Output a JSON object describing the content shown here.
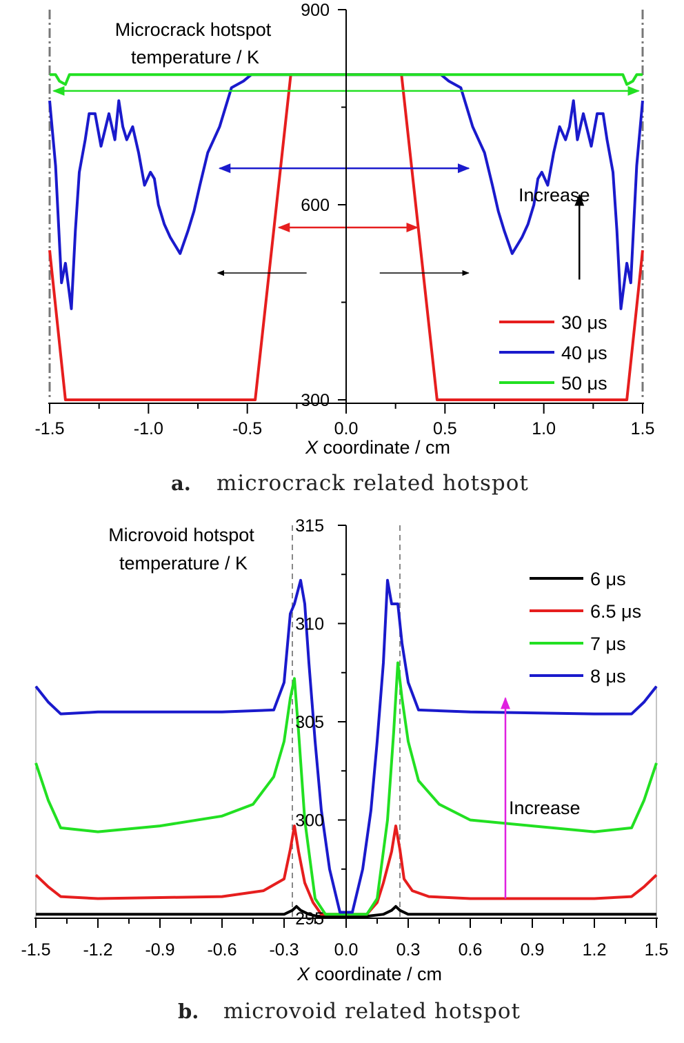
{
  "chart_data": [
    {
      "type": "line",
      "panel": "a",
      "caption_letter": "a.",
      "caption": "microcrack related hotspot",
      "ylabel_lines": [
        "Microcrack hotspot",
        "temperature / K"
      ],
      "xlabel_var": "X",
      "xlabel_rest": " coordinate / cm",
      "xlim": [
        -1.5,
        1.5
      ],
      "ylim": [
        300,
        900
      ],
      "xticks": [
        -1.5,
        -1.0,
        -0.5,
        0.0,
        0.5,
        1.0,
        1.5
      ],
      "xtick_labels": [
        "-1.5",
        "-1.0",
        "-0.5",
        "0.0",
        "0.5",
        "1.0",
        "1.5"
      ],
      "yticks": [
        300,
        600,
        900
      ],
      "ytick_labels": [
        "300",
        "600",
        "900"
      ],
      "annotation": "Increase",
      "legend_position": "bottom-right",
      "series": [
        {
          "name": "30 μs",
          "color": "#e61e1e",
          "x": [
            -1.5,
            -1.42,
            -0.46,
            -0.28,
            0.28,
            0.46,
            1.42,
            1.5
          ],
          "y": [
            530,
            300,
            300,
            800,
            800,
            300,
            300,
            530
          ]
        },
        {
          "name": "40 μs",
          "color": "#1a1acc",
          "x": [
            -1.5,
            -1.47,
            -1.44,
            -1.42,
            -1.39,
            -1.37,
            -1.35,
            -1.32,
            -1.3,
            -1.27,
            -1.24,
            -1.2,
            -1.17,
            -1.15,
            -1.13,
            -1.11,
            -1.08,
            -1.05,
            -1.02,
            -0.99,
            -0.97,
            -0.95,
            -0.92,
            -0.89,
            -0.87,
            -0.84,
            -0.8,
            -0.77,
            -0.74,
            -0.7,
            -0.67,
            -0.64,
            -0.61,
            -0.58,
            -0.55,
            -0.52,
            -0.48,
            -0.45,
            -0.42,
            -0.3,
            0.3,
            0.42,
            0.45,
            0.48,
            0.52,
            0.55,
            0.58,
            0.61,
            0.64,
            0.67,
            0.7,
            0.74,
            0.77,
            0.8,
            0.84,
            0.87,
            0.89,
            0.92,
            0.95,
            0.97,
            0.99,
            1.02,
            1.05,
            1.08,
            1.11,
            1.13,
            1.15,
            1.17,
            1.2,
            1.24,
            1.27,
            1.3,
            1.32,
            1.35,
            1.37,
            1.39,
            1.42,
            1.44,
            1.47,
            1.5
          ],
          "y": [
            760,
            660,
            480,
            510,
            440,
            560,
            650,
            700,
            740,
            740,
            690,
            740,
            700,
            760,
            720,
            700,
            720,
            680,
            630,
            650,
            640,
            600,
            570,
            550,
            540,
            525,
            560,
            590,
            630,
            680,
            700,
            720,
            750,
            780,
            785,
            790,
            800,
            800,
            800,
            800,
            800,
            800,
            800,
            800,
            790,
            785,
            780,
            750,
            720,
            700,
            680,
            630,
            590,
            560,
            525,
            540,
            550,
            570,
            600,
            640,
            650,
            630,
            680,
            720,
            700,
            720,
            760,
            700,
            740,
            690,
            740,
            740,
            700,
            650,
            560,
            440,
            510,
            480,
            660,
            760
          ]
        },
        {
          "name": "50 μs",
          "color": "#22e022",
          "x": [
            -1.5,
            -1.47,
            -1.45,
            -1.42,
            -1.4,
            -1.36,
            1.36,
            1.4,
            1.42,
            1.45,
            1.47,
            1.5
          ],
          "y": [
            800,
            800,
            790,
            785,
            800,
            800,
            800,
            800,
            785,
            790,
            800,
            800
          ]
        }
      ],
      "arrows": [
        {
          "name": "green-span-arrow",
          "color": "#22e022",
          "x": [
            -1.48,
            1.48
          ],
          "y": 775
        },
        {
          "name": "blue-span-arrow",
          "color": "#1a1acc",
          "x": [
            -0.64,
            0.62
          ],
          "y": 656
        },
        {
          "name": "red-span-arrow",
          "color": "#e61e1e",
          "x": [
            -0.34,
            0.36
          ],
          "y": 565
        },
        {
          "name": "left-black-arrow",
          "color": "#000000",
          "x": [
            -0.2,
            -0.65
          ],
          "y": 495
        },
        {
          "name": "right-black-arrow",
          "color": "#000000",
          "x": [
            0.17,
            0.62
          ],
          "y": 495
        }
      ],
      "increase_arrow": {
        "x": 1.18,
        "y": [
          485,
          615
        ],
        "label_x": 1.06,
        "label_y": 630
      }
    },
    {
      "type": "line",
      "panel": "b",
      "caption_letter": "b.",
      "caption": "microvoid related hotspot",
      "ylabel_lines": [
        "Microvoid hotspot",
        "temperature / K"
      ],
      "xlabel_var": "X",
      "xlabel_rest": " coordinate / cm",
      "xlim": [
        -1.5,
        1.5
      ],
      "ylim": [
        295,
        315
      ],
      "xticks": [
        -1.5,
        -1.2,
        -0.9,
        -0.6,
        -0.3,
        0.0,
        0.3,
        0.6,
        0.9,
        1.2,
        1.5
      ],
      "xtick_labels": [
        "-1.5",
        "-1.2",
        "-0.9",
        "-0.6",
        "-0.3",
        "0.0",
        "0.3",
        "0.6",
        "0.9",
        "1.2",
        "1.5"
      ],
      "yticks": [
        295,
        300,
        305,
        310,
        315
      ],
      "ytick_labels": [
        "295",
        "300",
        "305",
        "310",
        "315"
      ],
      "annotation": "Increase",
      "legend_position": "top-right",
      "series": [
        {
          "name": "6 μs",
          "color": "#000000",
          "x": [
            -1.5,
            -0.3,
            -0.26,
            -0.24,
            -0.22,
            -0.18,
            -0.14,
            0.1,
            0.18,
            0.22,
            0.24,
            0.26,
            0.3,
            1.5
          ],
          "y": [
            295.2,
            295.2,
            295.4,
            295.6,
            295.4,
            295.2,
            295.1,
            295.1,
            295.2,
            295.4,
            295.6,
            295.4,
            295.2,
            295.2
          ]
        },
        {
          "name": "6.5 μs",
          "color": "#e61e1e",
          "x": [
            -1.5,
            -1.44,
            -1.38,
            -1.2,
            -0.6,
            -0.4,
            -0.3,
            -0.27,
            -0.25,
            -0.23,
            -0.2,
            -0.16,
            -0.12,
            0.1,
            0.15,
            0.18,
            0.22,
            0.24,
            0.26,
            0.28,
            0.32,
            0.4,
            0.6,
            1.2,
            1.38,
            1.44,
            1.5
          ],
          "y": [
            297.2,
            296.6,
            296.1,
            296.0,
            296.1,
            296.4,
            297.0,
            298.5,
            299.7,
            298.4,
            296.8,
            295.8,
            295.2,
            295.2,
            295.8,
            296.8,
            298.4,
            299.7,
            298.5,
            297.0,
            296.4,
            296.1,
            296.0,
            296.0,
            296.1,
            296.6,
            297.2
          ]
        },
        {
          "name": "7 μs",
          "color": "#22e022",
          "x": [
            -1.5,
            -1.44,
            -1.38,
            -1.2,
            -0.9,
            -0.6,
            -0.45,
            -0.35,
            -0.3,
            -0.27,
            -0.25,
            -0.23,
            -0.2,
            -0.15,
            -0.1,
            0.1,
            0.15,
            0.2,
            0.23,
            0.25,
            0.27,
            0.3,
            0.35,
            0.45,
            0.6,
            0.9,
            1.2,
            1.38,
            1.44,
            1.5
          ],
          "y": [
            302.9,
            301.0,
            299.6,
            299.4,
            299.7,
            300.2,
            300.8,
            302.2,
            304.0,
            306.2,
            307.2,
            304.5,
            300.0,
            296.0,
            295.2,
            295.2,
            296.0,
            300.0,
            304.5,
            308.0,
            306.2,
            304.0,
            302.0,
            300.8,
            300.0,
            299.7,
            299.4,
            299.6,
            301.0,
            302.9
          ]
        },
        {
          "name": "8 μs",
          "color": "#1a1acc",
          "x": [
            -1.5,
            -1.44,
            -1.38,
            -1.2,
            -0.6,
            -0.35,
            -0.3,
            -0.27,
            -0.25,
            -0.22,
            -0.2,
            -0.18,
            -0.15,
            -0.12,
            -0.08,
            -0.03,
            0.03,
            0.08,
            0.12,
            0.15,
            0.18,
            0.2,
            0.22,
            0.25,
            0.27,
            0.3,
            0.35,
            0.6,
            1.2,
            1.38,
            1.44,
            1.5
          ],
          "y": [
            306.8,
            306.0,
            305.4,
            305.5,
            305.5,
            305.6,
            307.0,
            310.5,
            311.0,
            312.2,
            311.0,
            308.0,
            304.0,
            300.5,
            297.5,
            295.3,
            295.3,
            297.5,
            300.5,
            304.0,
            308.0,
            312.2,
            311.0,
            311.0,
            309.0,
            307.0,
            305.6,
            305.5,
            305.4,
            305.4,
            306.0,
            306.8
          ]
        }
      ],
      "dashed_lines_x": [
        -0.26,
        0.26
      ],
      "increase_arrow": {
        "x": 0.77,
        "y": [
          296.0,
          306.2
        ],
        "label_x": 0.77,
        "label_y": 300.8
      }
    }
  ]
}
